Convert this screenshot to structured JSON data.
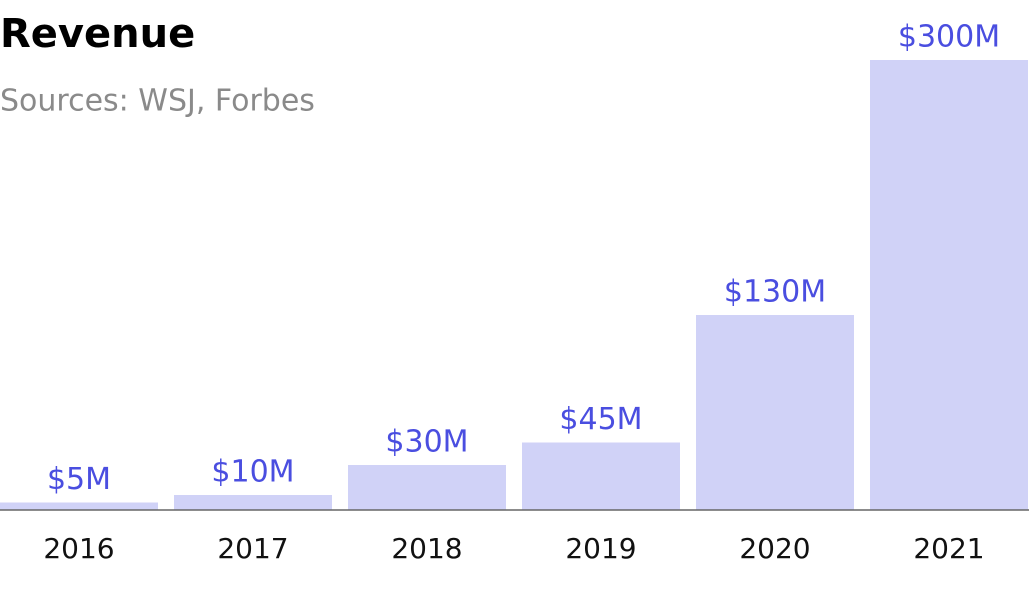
{
  "chart_data": {
    "type": "bar",
    "title": "Revenue",
    "subtitle": "Sources: WSJ, Forbes",
    "categories": [
      "2016",
      "2017",
      "2018",
      "2019",
      "2020",
      "2021"
    ],
    "values": [
      5,
      10,
      30,
      45,
      130,
      300
    ],
    "value_labels": [
      "$5M",
      "$10M",
      "$30M",
      "$45M",
      "$130M",
      "$300M"
    ],
    "color": "#d0d2f7",
    "label_color": "#4a4ee0",
    "ylim": [
      0,
      300
    ],
    "grid": false
  }
}
